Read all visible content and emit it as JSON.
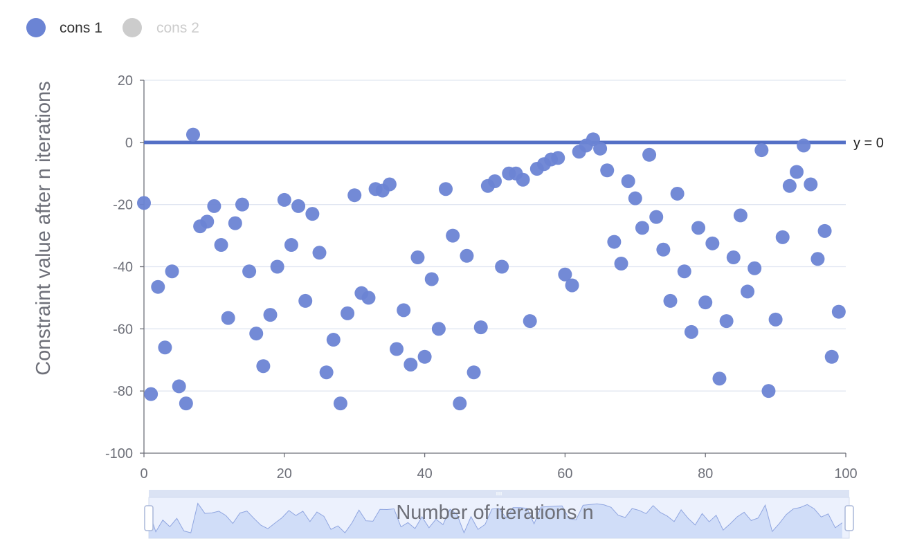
{
  "legend": [
    {
      "name": "cons 1",
      "color": "#6b84d4",
      "active": true
    },
    {
      "name": "cons 2",
      "color": "#cccccc",
      "active": false
    }
  ],
  "chart_data": {
    "type": "scatter",
    "xlabel": "Number of iterations n",
    "ylabel": "Constraint value after n iterations",
    "xlim": [
      0,
      100
    ],
    "ylim": [
      -100,
      20
    ],
    "xticks": [
      0,
      20,
      40,
      60,
      80,
      100
    ],
    "yticks": [
      20,
      0,
      -20,
      -40,
      -60,
      -80,
      -100
    ],
    "grid": true,
    "legend_position": "top-left",
    "markline": {
      "y": 0,
      "label": "y = 0",
      "color": "#5470c6"
    },
    "series": [
      {
        "name": "cons 1",
        "color": "#6b84d4",
        "x": [
          0,
          1,
          2,
          3,
          4,
          5,
          6,
          7,
          8,
          9,
          10,
          11,
          12,
          13,
          14,
          15,
          16,
          17,
          18,
          19,
          20,
          21,
          22,
          23,
          24,
          25,
          26,
          27,
          28,
          29,
          30,
          31,
          32,
          33,
          34,
          35,
          36,
          37,
          38,
          39,
          40,
          41,
          42,
          43,
          44,
          45,
          46,
          47,
          48,
          49,
          50,
          51,
          52,
          53,
          54,
          55,
          56,
          57,
          58,
          59,
          60,
          61,
          62,
          63,
          64,
          65,
          66,
          67,
          68,
          69,
          70,
          71,
          72,
          73,
          74,
          75,
          76,
          77,
          78,
          79,
          80,
          81,
          82,
          83,
          84,
          85,
          86,
          87,
          88,
          89,
          90,
          91,
          92,
          93,
          94,
          95,
          96,
          97,
          98,
          99
        ],
        "y": [
          -19.5,
          -81,
          -46.5,
          -66,
          -41.5,
          -78.5,
          -84,
          2.5,
          -27,
          -25.5,
          -20.5,
          -33,
          -56.5,
          -26,
          -20,
          -41.5,
          -61.5,
          -72,
          -55.5,
          -40,
          -18.5,
          -33,
          -20.5,
          -51,
          -23,
          -35.5,
          -74,
          -63.5,
          -84,
          -55,
          -17,
          -48.5,
          -50,
          -15,
          -15.5,
          -13.5,
          -66.5,
          -54,
          -71.5,
          -37,
          -69,
          -44,
          -60,
          -15,
          -30,
          -84,
          -36.5,
          -74,
          -59.5,
          -14,
          -12.5,
          -40,
          -10,
          -10,
          -12,
          -57.5,
          -8.5,
          -7,
          -5.5,
          -5,
          -42.5,
          -46,
          -3,
          -1,
          1,
          -2,
          -9,
          -32,
          -39,
          -12.5,
          -18,
          -27.5,
          -4,
          -24,
          -34.5,
          -51,
          -16.5,
          -41.5,
          -61,
          -27.5,
          -51.5,
          -32.5,
          -76,
          -57.5,
          -37,
          -23.5,
          -48,
          -40.5,
          -2.5,
          -80,
          -57,
          -30.5,
          -14,
          -9.5,
          -1,
          -13.5,
          -37.5,
          -28.5,
          -69,
          -54.5
        ]
      }
    ]
  },
  "datazoom": {
    "start": 0,
    "end": 100
  }
}
